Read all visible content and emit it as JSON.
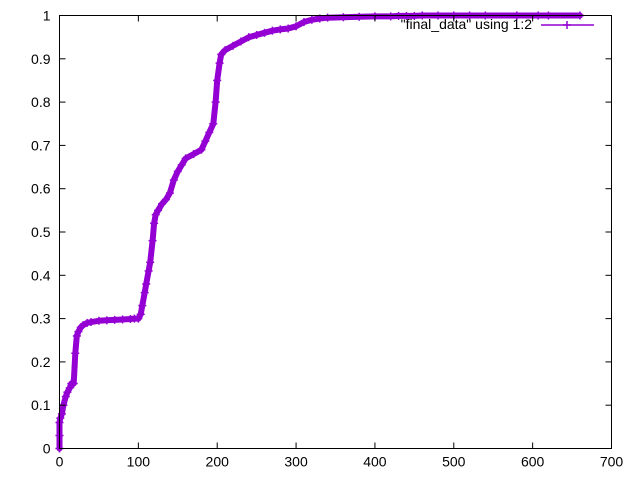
{
  "chart_data": {
    "type": "line",
    "title": "",
    "xlabel": "",
    "ylabel": "",
    "xlim": [
      0,
      700
    ],
    "ylim": [
      0,
      1
    ],
    "xticks": [
      "0",
      "100",
      "200",
      "300",
      "400",
      "500",
      "600",
      "700"
    ],
    "yticks": [
      "0",
      "0.1",
      "0.2",
      "0.3",
      "0.4",
      "0.5",
      "0.6",
      "0.7",
      "0.8",
      "0.9",
      "1"
    ],
    "grid": false,
    "legend_position": "top-right",
    "series": [
      {
        "name": "\"final_data\" using 1:2",
        "color": "#9400d3",
        "marker": "plus",
        "x": [
          0,
          0,
          0,
          1,
          3,
          5,
          8,
          10,
          13,
          15,
          18,
          20,
          22,
          24,
          27,
          30,
          35,
          40,
          50,
          60,
          70,
          80,
          90,
          95,
          100,
          103,
          105,
          108,
          110,
          113,
          115,
          118,
          120,
          122,
          125,
          130,
          135,
          140,
          145,
          150,
          155,
          160,
          170,
          180,
          185,
          190,
          195,
          198,
          200,
          203,
          205,
          210,
          220,
          230,
          240,
          250,
          260,
          270,
          280,
          290,
          300,
          310,
          320,
          330,
          340,
          360,
          380,
          400,
          420,
          430,
          440,
          450,
          460,
          480,
          500,
          520,
          540,
          580,
          607,
          620,
          660
        ],
        "y": [
          0,
          0.03,
          0.06,
          0.07,
          0.08,
          0.1,
          0.12,
          0.13,
          0.14,
          0.15,
          0.15,
          0.22,
          0.26,
          0.27,
          0.28,
          0.285,
          0.29,
          0.292,
          0.295,
          0.296,
          0.297,
          0.298,
          0.299,
          0.3,
          0.3,
          0.31,
          0.33,
          0.36,
          0.38,
          0.41,
          0.43,
          0.48,
          0.52,
          0.54,
          0.55,
          0.565,
          0.575,
          0.59,
          0.62,
          0.64,
          0.655,
          0.67,
          0.68,
          0.69,
          0.71,
          0.73,
          0.75,
          0.8,
          0.85,
          0.89,
          0.91,
          0.92,
          0.93,
          0.94,
          0.95,
          0.955,
          0.96,
          0.965,
          0.968,
          0.97,
          0.975,
          0.985,
          0.99,
          0.993,
          0.995,
          0.996,
          0.997,
          0.998,
          0.998,
          0.999,
          0.999,
          0.999,
          1.0,
          1.0,
          1.0,
          1.0,
          1.0,
          1.0,
          1.0,
          1.0,
          1.0
        ]
      }
    ]
  }
}
